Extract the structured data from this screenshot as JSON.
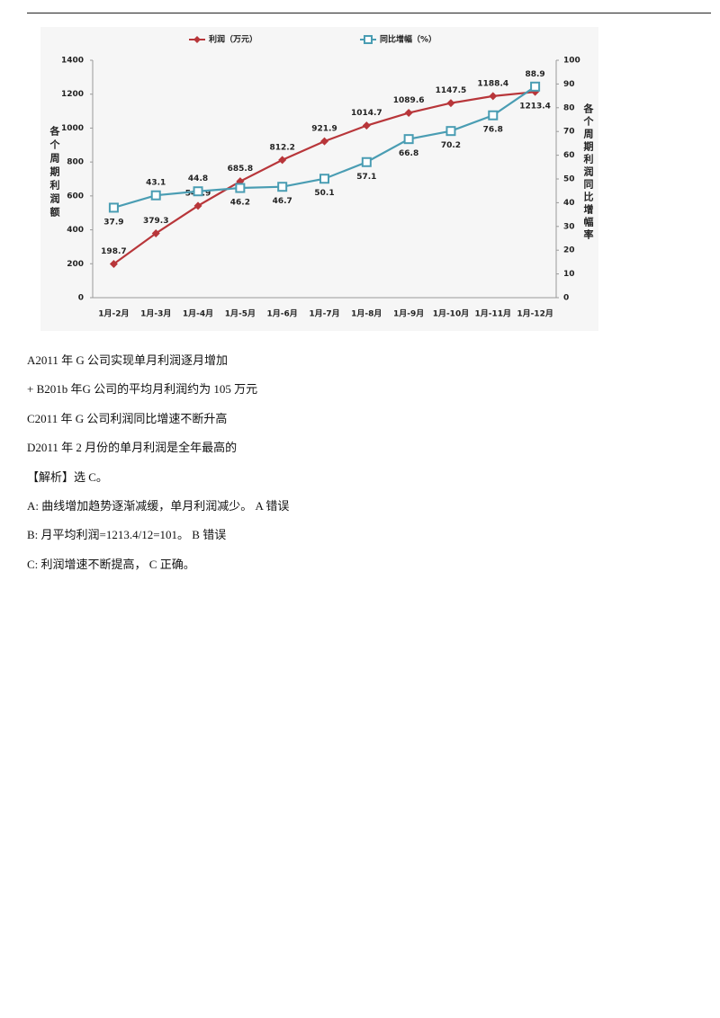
{
  "chart_data": {
    "type": "line",
    "categories": [
      "1月-2月",
      "1月-3月",
      "1月-4月",
      "1月-5月",
      "1月-6月",
      "1月-7月",
      "1月-8月",
      "1月-9月",
      "1月-10月",
      "1月-11月",
      "1月-12月"
    ],
    "series": [
      {
        "name": "利润（万元）",
        "color": "#b8363a",
        "marker": "diamond",
        "values": [
          198.7,
          379.3,
          541.9,
          685.8,
          812.2,
          921.9,
          1014.7,
          1089.6,
          1147.5,
          1188.4,
          1213.4
        ]
      },
      {
        "name": "同比增幅（%）",
        "color": "#4a9db3",
        "marker": "square",
        "axis": "y2",
        "values": [
          37.9,
          43.1,
          44.8,
          46.2,
          46.7,
          50.1,
          57.1,
          66.8,
          70.2,
          76.8,
          88.9
        ]
      }
    ],
    "ylabel": "各个周期利润额",
    "y2label": "各个周期利润同比增幅率",
    "ylim": [
      0,
      1400
    ],
    "yticks": [
      0,
      200,
      400,
      600,
      800,
      1000,
      1200,
      1400
    ],
    "y2lim": [
      0,
      100
    ],
    "y2ticks": [
      0,
      10,
      20,
      30,
      40,
      50,
      60,
      70,
      80,
      90,
      100
    ],
    "legend": "top",
    "grid": false
  },
  "document": {
    "lines": [
      "A2011 年 G 公司实现单月利润逐月增加",
      "+ B201b 年G 公司的平均月利润约为 105 万元",
      "C2011 年 G 公司利润同比增速不断升高",
      "D2011 年 2 月份的单月利润是全年最高的",
      "【解析】选 C。",
      "A: 曲线增加趋势逐渐减缓，单月利润减少。 A 错误",
      "B: 月平均利润=1213.4/12=101。 B 错误",
      "C: 利润增速不断提高， C 正确。"
    ]
  }
}
